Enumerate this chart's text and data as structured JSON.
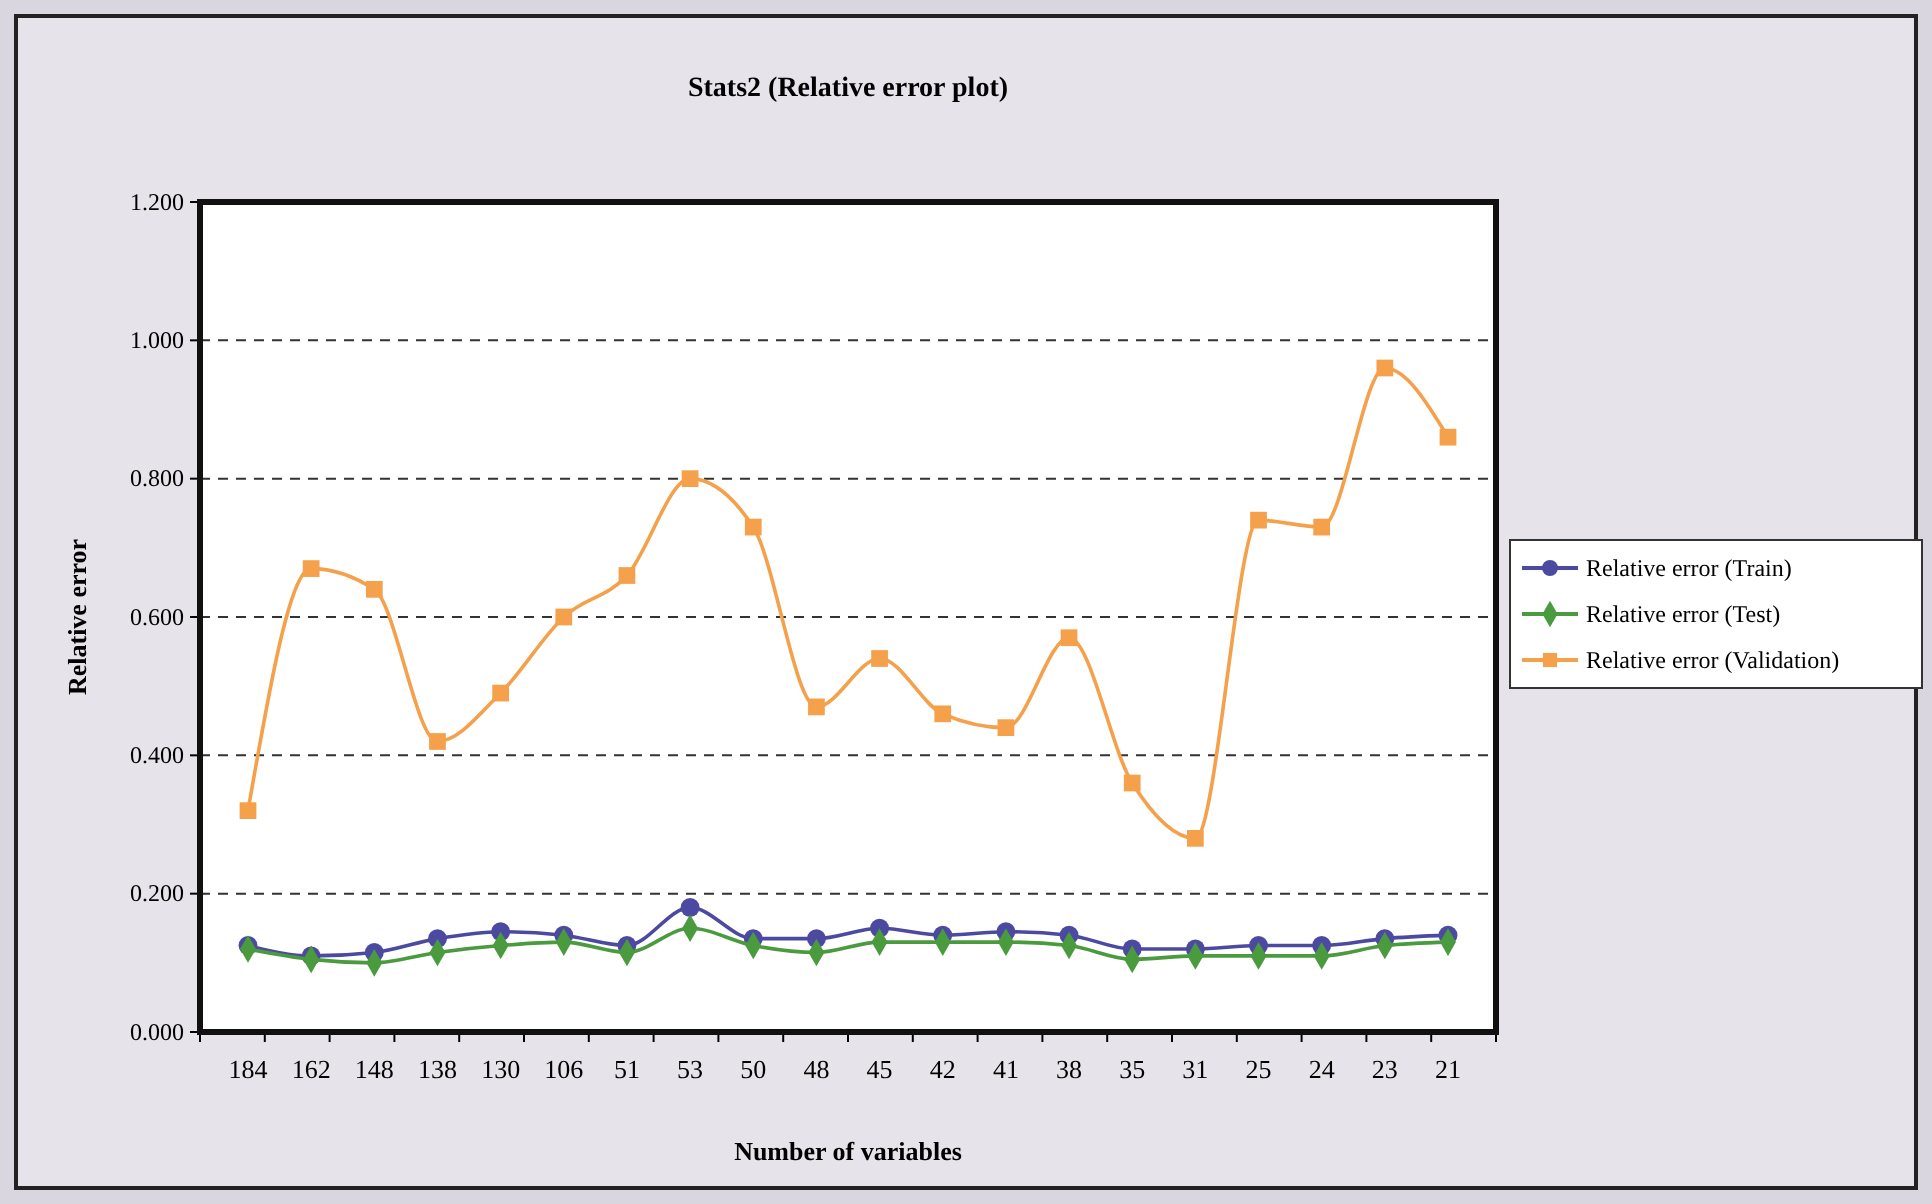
{
  "chart_data": {
    "type": "line",
    "title": "Stats2 (Relative error plot)",
    "xlabel": "Number of variables",
    "ylabel": "Relative error",
    "categories": [
      "184",
      "162",
      "148",
      "138",
      "130",
      "106",
      "51",
      "53",
      "50",
      "48",
      "45",
      "42",
      "41",
      "38",
      "35",
      "31",
      "25",
      "24",
      "23",
      "21"
    ],
    "series": [
      {
        "name": "Relative error (Train)",
        "color": "#4b4aa0",
        "marker": "circle",
        "values": [
          0.125,
          0.11,
          0.115,
          0.135,
          0.145,
          0.14,
          0.125,
          0.18,
          0.135,
          0.135,
          0.15,
          0.14,
          0.145,
          0.14,
          0.12,
          0.12,
          0.125,
          0.125,
          0.135,
          0.14
        ]
      },
      {
        "name": "Relative error (Test)",
        "color": "#4a9a3e",
        "marker": "diamond",
        "values": [
          0.12,
          0.105,
          0.1,
          0.115,
          0.125,
          0.13,
          0.115,
          0.15,
          0.125,
          0.115,
          0.13,
          0.13,
          0.13,
          0.125,
          0.105,
          0.11,
          0.11,
          0.11,
          0.125,
          0.13
        ]
      },
      {
        "name": "Relative error (Validation)",
        "color": "#f5a04a",
        "marker": "square",
        "values": [
          0.32,
          0.67,
          0.64,
          0.42,
          0.49,
          0.6,
          0.66,
          0.8,
          0.73,
          0.47,
          0.54,
          0.46,
          0.44,
          0.57,
          0.36,
          0.28,
          0.74,
          0.73,
          0.96,
          0.86
        ]
      }
    ],
    "ylim": [
      0,
      1.2
    ],
    "yticks": [
      {
        "value": 0,
        "label": "0.000"
      },
      {
        "value": 0.2,
        "label": "0.200"
      },
      {
        "value": 0.4,
        "label": "0.400"
      },
      {
        "value": 0.6,
        "label": "0.600"
      },
      {
        "value": 0.8,
        "label": "0.800"
      },
      {
        "value": 1,
        "label": "1.000"
      },
      {
        "value": 1.2,
        "label": "1.200"
      }
    ],
    "grid": "y",
    "legend": "right"
  }
}
